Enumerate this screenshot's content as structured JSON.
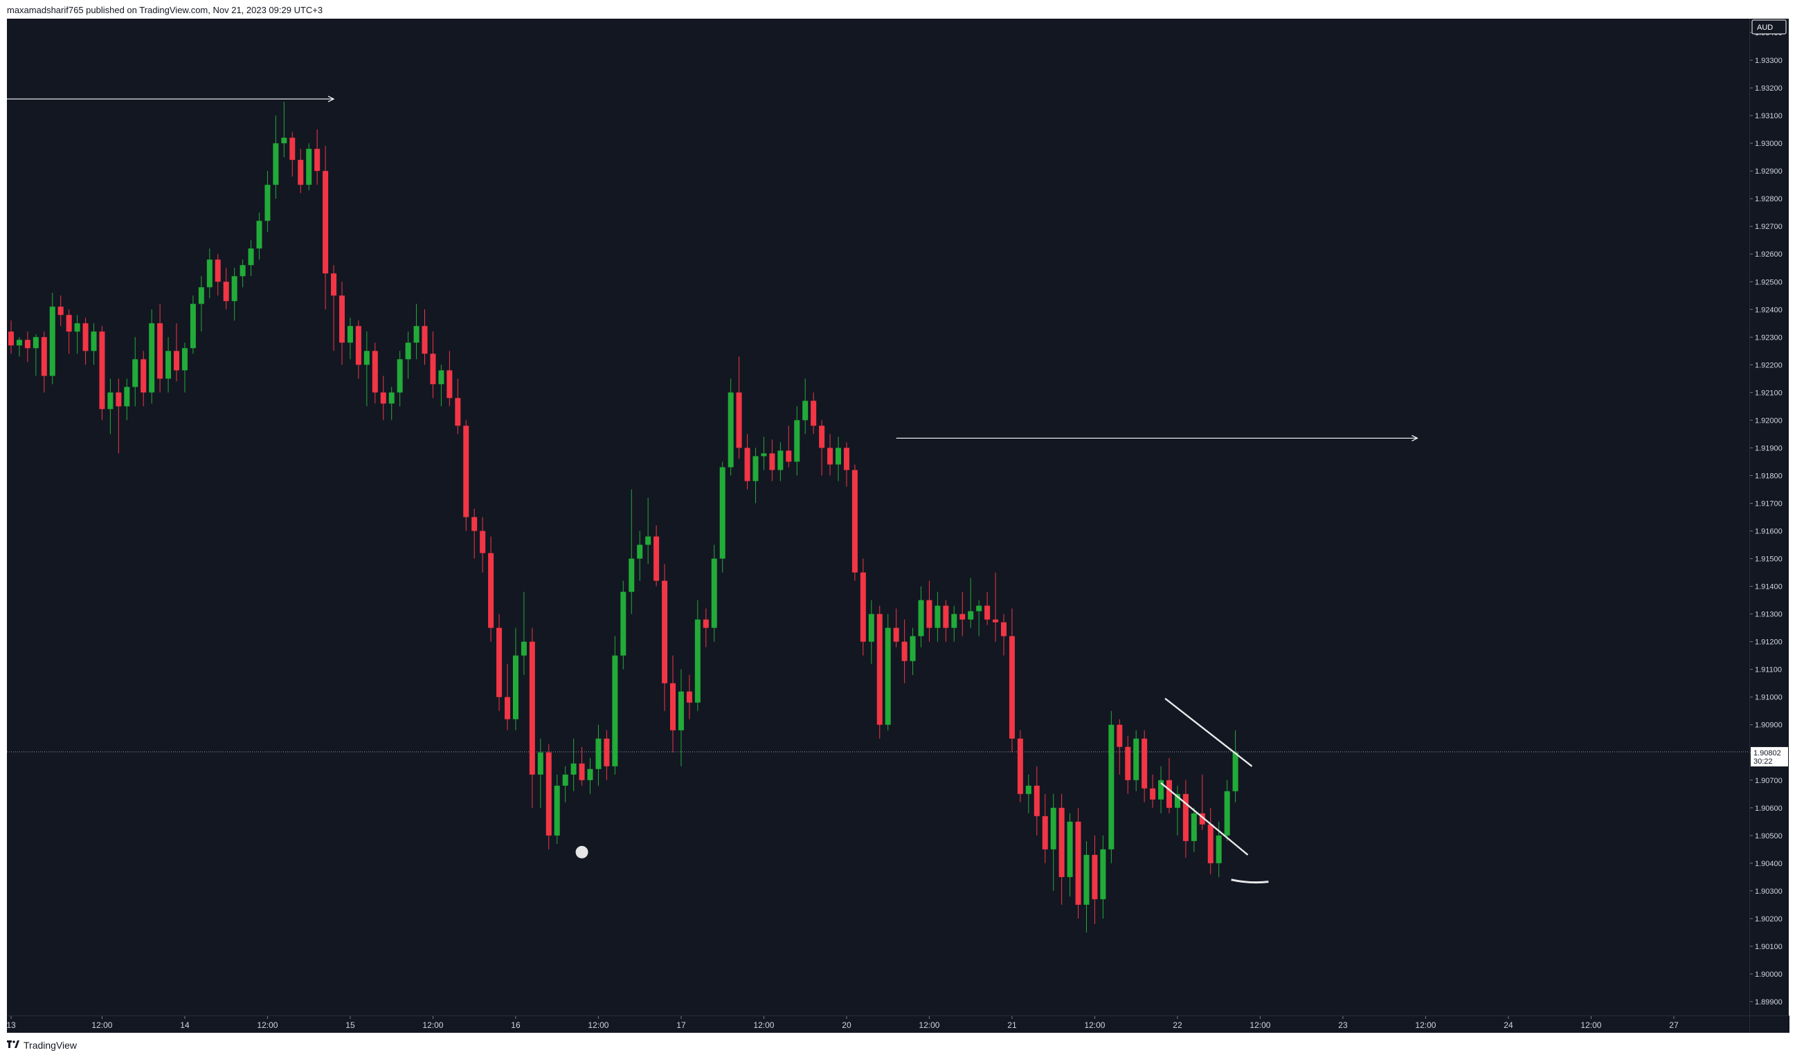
{
  "header": {
    "text": "maxamadsharif765 published on TradingView.com, Nov 21, 2023 09:29 UTC+3"
  },
  "footer": {
    "brand": "TradingView",
    "logo_icon": "tradingview-logo-icon"
  },
  "colors": {
    "background": "#131722",
    "up": "#22ab38",
    "down": "#f23645",
    "drawing": "#ffffff",
    "grid": "#2a2e39"
  },
  "chart_data": {
    "type": "candlestick",
    "symbol_currency": "AUD",
    "timeframe": "1h",
    "ylim": [
      1.8985,
      1.9345
    ],
    "y_ticks": [
      "1.93400",
      "1.93300",
      "1.93200",
      "1.93100",
      "1.93000",
      "1.92900",
      "1.92800",
      "1.92700",
      "1.92600",
      "1.92500",
      "1.92400",
      "1.92300",
      "1.92200",
      "1.92100",
      "1.92000",
      "1.91900",
      "1.91800",
      "1.91700",
      "1.91600",
      "1.91500",
      "1.91400",
      "1.91300",
      "1.91200",
      "1.91100",
      "1.91000",
      "1.90900",
      "1.90800",
      "1.90700",
      "1.90600",
      "1.90500",
      "1.90400",
      "1.90300",
      "1.90200",
      "1.90100",
      "1.90000",
      "1.89900"
    ],
    "x_ticks": [
      {
        "label": "13",
        "t": 0
      },
      {
        "label": "12:00",
        "t": 11
      },
      {
        "label": "14",
        "t": 21
      },
      {
        "label": "12:00",
        "t": 31
      },
      {
        "label": "15",
        "t": 41
      },
      {
        "label": "12:00",
        "t": 51
      },
      {
        "label": "16",
        "t": 61
      },
      {
        "label": "12:00",
        "t": 71
      },
      {
        "label": "17",
        "t": 81
      },
      {
        "label": "12:00",
        "t": 91
      },
      {
        "label": "20",
        "t": 101
      },
      {
        "label": "12:00",
        "t": 111
      },
      {
        "label": "21",
        "t": 121
      },
      {
        "label": "12:00",
        "t": 131
      },
      {
        "label": "22",
        "t": 141
      },
      {
        "label": "12:00",
        "t": 151
      },
      {
        "label": "23",
        "t": 161
      },
      {
        "label": "12:00",
        "t": 171
      },
      {
        "label": "24",
        "t": 181
      },
      {
        "label": "12:00",
        "t": 191
      },
      {
        "label": "27",
        "t": 201
      }
    ],
    "last_price": "1.90802",
    "countdown": "30:22",
    "ohlc": [
      [
        1.9232,
        1.9236,
        1.9224,
        1.9227
      ],
      [
        1.9227,
        1.923,
        1.9223,
        1.9229
      ],
      [
        1.9229,
        1.9232,
        1.9221,
        1.9226
      ],
      [
        1.9226,
        1.9231,
        1.9216,
        1.923
      ],
      [
        1.923,
        1.9232,
        1.921,
        1.9216
      ],
      [
        1.9216,
        1.9246,
        1.9213,
        1.9241
      ],
      [
        1.9241,
        1.9245,
        1.9234,
        1.9238
      ],
      [
        1.9238,
        1.924,
        1.9224,
        1.9232
      ],
      [
        1.9232,
        1.9238,
        1.9224,
        1.9235
      ],
      [
        1.9235,
        1.9237,
        1.922,
        1.9225
      ],
      [
        1.9225,
        1.9235,
        1.922,
        1.9232
      ],
      [
        1.9232,
        1.9234,
        1.92,
        1.9204
      ],
      [
        1.9204,
        1.9215,
        1.9195,
        1.921
      ],
      [
        1.921,
        1.9215,
        1.9188,
        1.9205
      ],
      [
        1.9205,
        1.9215,
        1.92,
        1.9212
      ],
      [
        1.9212,
        1.923,
        1.9205,
        1.9222
      ],
      [
        1.9222,
        1.9225,
        1.9205,
        1.921
      ],
      [
        1.921,
        1.924,
        1.9206,
        1.9235
      ],
      [
        1.9235,
        1.9242,
        1.921,
        1.9215
      ],
      [
        1.9215,
        1.923,
        1.921,
        1.9225
      ],
      [
        1.9225,
        1.9235,
        1.9214,
        1.9218
      ],
      [
        1.9218,
        1.9228,
        1.921,
        1.9226
      ],
      [
        1.9226,
        1.9245,
        1.9224,
        1.9242
      ],
      [
        1.9242,
        1.9252,
        1.9232,
        1.9248
      ],
      [
        1.9248,
        1.9262,
        1.9244,
        1.9258
      ],
      [
        1.9258,
        1.926,
        1.9245,
        1.925
      ],
      [
        1.925,
        1.9255,
        1.924,
        1.9243
      ],
      [
        1.9243,
        1.9255,
        1.9236,
        1.9252
      ],
      [
        1.9252,
        1.9258,
        1.9248,
        1.9256
      ],
      [
        1.9256,
        1.9265,
        1.9252,
        1.9262
      ],
      [
        1.9262,
        1.9275,
        1.9258,
        1.9272
      ],
      [
        1.9272,
        1.929,
        1.9268,
        1.9285
      ],
      [
        1.9285,
        1.931,
        1.928,
        1.93
      ],
      [
        1.93,
        1.9315,
        1.9295,
        1.9302
      ],
      [
        1.9302,
        1.9304,
        1.9288,
        1.9294
      ],
      [
        1.9294,
        1.9298,
        1.9282,
        1.9285
      ],
      [
        1.9285,
        1.93,
        1.9283,
        1.9298
      ],
      [
        1.9298,
        1.9305,
        1.9285,
        1.929
      ],
      [
        1.929,
        1.9299,
        1.924,
        1.9253
      ],
      [
        1.9253,
        1.9256,
        1.9225,
        1.9245
      ],
      [
        1.9245,
        1.925,
        1.922,
        1.9228
      ],
      [
        1.9228,
        1.9237,
        1.9222,
        1.9234
      ],
      [
        1.9234,
        1.9236,
        1.9215,
        1.922
      ],
      [
        1.922,
        1.9232,
        1.9205,
        1.9225
      ],
      [
        1.9225,
        1.9228,
        1.9206,
        1.921
      ],
      [
        1.921,
        1.9216,
        1.92,
        1.9206
      ],
      [
        1.9206,
        1.9212,
        1.92,
        1.921
      ],
      [
        1.921,
        1.9225,
        1.9205,
        1.9222
      ],
      [
        1.9222,
        1.9232,
        1.9215,
        1.9228
      ],
      [
        1.9228,
        1.9242,
        1.9222,
        1.9234
      ],
      [
        1.9234,
        1.924,
        1.922,
        1.9224
      ],
      [
        1.9224,
        1.9232,
        1.9208,
        1.9213
      ],
      [
        1.9213,
        1.922,
        1.9205,
        1.9218
      ],
      [
        1.9218,
        1.9225,
        1.9205,
        1.9208
      ],
      [
        1.9208,
        1.9215,
        1.9195,
        1.9198
      ],
      [
        1.9198,
        1.92,
        1.916,
        1.9165
      ],
      [
        1.9165,
        1.9168,
        1.915,
        1.916
      ],
      [
        1.916,
        1.9165,
        1.9145,
        1.9152
      ],
      [
        1.9152,
        1.9158,
        1.912,
        1.9125
      ],
      [
        1.9125,
        1.913,
        1.9095,
        1.91
      ],
      [
        1.91,
        1.9112,
        1.9088,
        1.9092
      ],
      [
        1.9092,
        1.9125,
        1.9088,
        1.9115
      ],
      [
        1.9115,
        1.9138,
        1.9108,
        1.912
      ],
      [
        1.912,
        1.9125,
        1.906,
        1.9072
      ],
      [
        1.9072,
        1.9085,
        1.906,
        1.908
      ],
      [
        1.908,
        1.9083,
        1.9045,
        1.905
      ],
      [
        1.905,
        1.9072,
        1.9047,
        1.9068
      ],
      [
        1.9068,
        1.9075,
        1.9062,
        1.9072
      ],
      [
        1.9072,
        1.9085,
        1.9066,
        1.9076
      ],
      [
        1.9076,
        1.9082,
        1.9068,
        1.907
      ],
      [
        1.907,
        1.9078,
        1.9065,
        1.9074
      ],
      [
        1.9074,
        1.909,
        1.9068,
        1.9085
      ],
      [
        1.9085,
        1.9088,
        1.907,
        1.9075
      ],
      [
        1.9075,
        1.9122,
        1.9072,
        1.9115
      ],
      [
        1.9115,
        1.9142,
        1.911,
        1.9138
      ],
      [
        1.9138,
        1.9175,
        1.913,
        1.915
      ],
      [
        1.915,
        1.916,
        1.9142,
        1.9155
      ],
      [
        1.9155,
        1.9172,
        1.9148,
        1.9158
      ],
      [
        1.9158,
        1.9162,
        1.914,
        1.9142
      ],
      [
        1.9142,
        1.9148,
        1.9095,
        1.9105
      ],
      [
        1.9105,
        1.9115,
        1.908,
        1.9088
      ],
      [
        1.9088,
        1.911,
        1.9075,
        1.9102
      ],
      [
        1.9102,
        1.9108,
        1.9092,
        1.9098
      ],
      [
        1.9098,
        1.9135,
        1.9095,
        1.9128
      ],
      [
        1.9128,
        1.9132,
        1.9118,
        1.9125
      ],
      [
        1.9125,
        1.9155,
        1.912,
        1.915
      ],
      [
        1.915,
        1.9185,
        1.9145,
        1.9183
      ],
      [
        1.9183,
        1.9215,
        1.918,
        1.921
      ],
      [
        1.921,
        1.9223,
        1.9186,
        1.919
      ],
      [
        1.919,
        1.9195,
        1.9175,
        1.9178
      ],
      [
        1.9178,
        1.919,
        1.917,
        1.9187
      ],
      [
        1.9187,
        1.9194,
        1.9182,
        1.9188
      ],
      [
        1.9188,
        1.9193,
        1.9178,
        1.9182
      ],
      [
        1.9182,
        1.9192,
        1.9178,
        1.9189
      ],
      [
        1.9189,
        1.9198,
        1.9183,
        1.9185
      ],
      [
        1.9185,
        1.9205,
        1.918,
        1.92
      ],
      [
        1.92,
        1.9215,
        1.9195,
        1.9207
      ],
      [
        1.9207,
        1.921,
        1.9195,
        1.9198
      ],
      [
        1.9198,
        1.92,
        1.918,
        1.919
      ],
      [
        1.919,
        1.9195,
        1.918,
        1.9184
      ],
      [
        1.9184,
        1.9194,
        1.9178,
        1.919
      ],
      [
        1.919,
        1.9192,
        1.9176,
        1.9182
      ],
      [
        1.9182,
        1.9184,
        1.9142,
        1.9145
      ],
      [
        1.9145,
        1.915,
        1.9115,
        1.912
      ],
      [
        1.912,
        1.9135,
        1.9112,
        1.913
      ],
      [
        1.913,
        1.9133,
        1.9085,
        1.909
      ],
      [
        1.909,
        1.913,
        1.9088,
        1.9125
      ],
      [
        1.9125,
        1.9132,
        1.9118,
        1.912
      ],
      [
        1.912,
        1.9128,
        1.9105,
        1.9113
      ],
      [
        1.9113,
        1.9125,
        1.9108,
        1.9122
      ],
      [
        1.9122,
        1.914,
        1.9118,
        1.9135
      ],
      [
        1.9135,
        1.9142,
        1.912,
        1.9125
      ],
      [
        1.9125,
        1.9138,
        1.912,
        1.9133
      ],
      [
        1.9133,
        1.9135,
        1.912,
        1.9125
      ],
      [
        1.9125,
        1.9133,
        1.912,
        1.913
      ],
      [
        1.913,
        1.9138,
        1.9122,
        1.9128
      ],
      [
        1.9128,
        1.9143,
        1.9125,
        1.9131
      ],
      [
        1.9131,
        1.9135,
        1.9122,
        1.9133
      ],
      [
        1.9133,
        1.9138,
        1.9126,
        1.9128
      ],
      [
        1.9128,
        1.9145,
        1.912,
        1.9127
      ],
      [
        1.9127,
        1.913,
        1.9115,
        1.9122
      ],
      [
        1.9122,
        1.9132,
        1.908,
        1.9085
      ],
      [
        1.9085,
        1.9088,
        1.9062,
        1.9065
      ],
      [
        1.9065,
        1.9072,
        1.9058,
        1.9068
      ],
      [
        1.9068,
        1.9075,
        1.905,
        1.9057
      ],
      [
        1.9057,
        1.9065,
        1.904,
        1.9045
      ],
      [
        1.9045,
        1.9065,
        1.903,
        1.906
      ],
      [
        1.906,
        1.9065,
        1.9025,
        1.9035
      ],
      [
        1.9035,
        1.9058,
        1.9028,
        1.9055
      ],
      [
        1.9055,
        1.906,
        1.902,
        1.9025
      ],
      [
        1.9025,
        1.9048,
        1.9015,
        1.9043
      ],
      [
        1.9043,
        1.905,
        1.9018,
        1.9027
      ],
      [
        1.9027,
        1.905,
        1.902,
        1.9045
      ],
      [
        1.9045,
        1.9095,
        1.904,
        1.909
      ],
      [
        1.909,
        1.9092,
        1.9072,
        1.9082
      ],
      [
        1.9082,
        1.9086,
        1.9065,
        1.907
      ],
      [
        1.907,
        1.9088,
        1.9066,
        1.9085
      ],
      [
        1.9085,
        1.9088,
        1.9062,
        1.9067
      ],
      [
        1.9067,
        1.9072,
        1.906,
        1.9063
      ],
      [
        1.9063,
        1.9075,
        1.9058,
        1.907
      ],
      [
        1.907,
        1.9078,
        1.9058,
        1.906
      ],
      [
        1.906,
        1.9068,
        1.905,
        1.9065
      ],
      [
        1.9065,
        1.907,
        1.9042,
        1.9048
      ],
      [
        1.9048,
        1.906,
        1.9044,
        1.9058
      ],
      [
        1.9058,
        1.9072,
        1.9052,
        1.9054
      ],
      [
        1.9054,
        1.906,
        1.9036,
        1.904
      ],
      [
        1.904,
        1.9055,
        1.9035,
        1.905
      ],
      [
        1.905,
        1.907,
        1.9048,
        1.9066
      ],
      [
        1.9066,
        1.9088,
        1.9062,
        1.908
      ]
    ],
    "drawings": [
      {
        "type": "arrow-line",
        "t_start": -1,
        "t_end": 39,
        "price": 1.9316
      },
      {
        "type": "arrow-line",
        "t_start": 107,
        "t_end": 170,
        "price": 1.91935
      },
      {
        "type": "line",
        "t1": 139.5,
        "p1": 1.90995,
        "t2": 150,
        "p2": 1.9075
      },
      {
        "type": "line",
        "t1": 139,
        "p1": 1.9069,
        "t2": 149.5,
        "p2": 1.9043
      },
      {
        "type": "dot",
        "t": 69,
        "price": 1.9044
      },
      {
        "type": "curve",
        "t1": 147.5,
        "t2": 152,
        "price": 1.90333
      }
    ]
  }
}
